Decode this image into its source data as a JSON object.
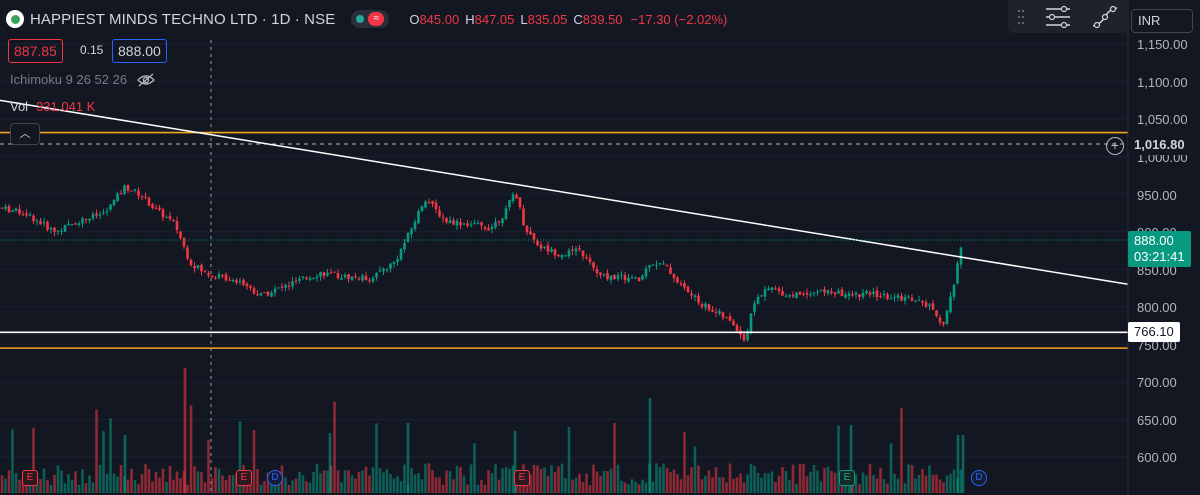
{
  "header": {
    "symbol": "HAPPIEST MINDS TECHNO LTD · 1D · NSE",
    "ohlc": [
      {
        "k": "O",
        "v": "845.00"
      },
      {
        "k": "H",
        "v": "847.05"
      },
      {
        "k": "L",
        "v": "835.05"
      },
      {
        "k": "C",
        "v": "839.50"
      }
    ],
    "change": "−17.30 (−2.02%)",
    "sell_price": "887.85",
    "spread": "0.15",
    "buy_price": "888.00"
  },
  "indicators": {
    "ichimoku": "Ichimoku 9 26 52 26",
    "vol_label": "Vol",
    "vol_value": "331.041 K"
  },
  "toolbar": {
    "currency": "INR"
  },
  "price_axis": {
    "labels": [
      "1,150.00",
      "1,100.00",
      "1,050.00",
      "1,000.00",
      "950.00",
      "900.00",
      "850.00",
      "800.00",
      "750.00",
      "700.00",
      "650.00",
      "600.00"
    ],
    "ref_line": "1,016.80",
    "last_price": "888.00",
    "countdown": "03:21:41",
    "support_level": "766.10"
  },
  "markers": [
    {
      "type": "E",
      "color": "red"
    },
    {
      "type": "E",
      "color": "red"
    },
    {
      "type": "D",
      "color": "blue"
    },
    {
      "type": "E",
      "color": "red"
    },
    {
      "type": "E",
      "color": "green"
    },
    {
      "type": "D",
      "color": "blue"
    }
  ],
  "chart_data": {
    "type": "candlestick",
    "y_range": [
      580,
      1165
    ],
    "horizontal_lines": [
      {
        "level": 1032,
        "color": "#f5a623"
      },
      {
        "level": 1016.8,
        "color": "#b2b5be",
        "style": "dashed"
      },
      {
        "level": 766.1,
        "color": "#ffffff"
      },
      {
        "level": 745,
        "color": "#f5a623"
      }
    ],
    "trendline": {
      "from_price": 1075,
      "to_price": 830,
      "color": "#ffffff"
    },
    "colors": {
      "up": "#089981",
      "down": "#f23645"
    }
  }
}
